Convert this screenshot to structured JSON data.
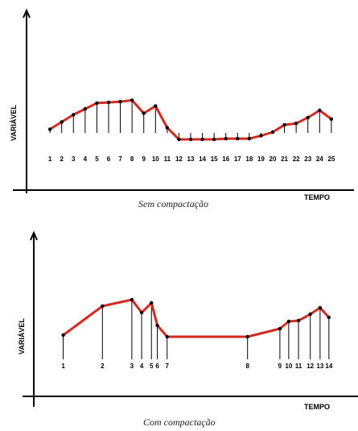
{
  "chart_data": [
    {
      "type": "line",
      "title": "",
      "caption": "Sem compactação",
      "xlabel": "TEMPO",
      "ylabel": "VARIÁVEL",
      "point_labels": [
        "1",
        "2",
        "3",
        "4",
        "5",
        "6",
        "7",
        "8",
        "9",
        "10",
        "11",
        "12",
        "13",
        "14",
        "15",
        "16",
        "17",
        "18",
        "19",
        "20",
        "21",
        "22",
        "23",
        "24",
        "25"
      ],
      "x": [
        1,
        2,
        3,
        4,
        5,
        6,
        7,
        8,
        9,
        10,
        11,
        12,
        13,
        14,
        15,
        16,
        17,
        18,
        19,
        20,
        21,
        22,
        23,
        24,
        25
      ],
      "values": [
        62,
        67,
        72,
        76,
        80,
        80.5,
        81,
        82,
        73,
        78,
        63,
        55,
        55,
        55,
        55,
        55.5,
        55.5,
        55.5,
        57.5,
        60,
        65,
        66,
        70,
        75,
        69
      ],
      "xlim": [
        -1,
        27
      ],
      "ylim": [
        20,
        120
      ],
      "colors": {
        "series": "#d42a1e",
        "axis": "#000000"
      }
    },
    {
      "type": "line",
      "title": "",
      "caption": "Com compactação",
      "xlabel": "TEMPO",
      "ylabel": "VARIÁVEL",
      "point_labels": [
        "1",
        "2",
        "3",
        "4",
        "5",
        "6",
        "7",
        "8",
        "9",
        "10",
        "11",
        "12",
        "13",
        "14"
      ],
      "x": [
        1,
        5,
        8,
        9,
        10,
        10.6,
        11.6,
        19.8,
        23.1,
        24,
        25,
        26.2,
        27.2,
        28.1
      ],
      "values": [
        58,
        76,
        80,
        72,
        78,
        64,
        57,
        57,
        62,
        66.5,
        67,
        71,
        75,
        69
      ],
      "xlim": [
        -2,
        30
      ],
      "ylim": [
        20,
        120
      ],
      "colors": {
        "series": "#d42a1e",
        "axis": "#000000"
      }
    }
  ]
}
